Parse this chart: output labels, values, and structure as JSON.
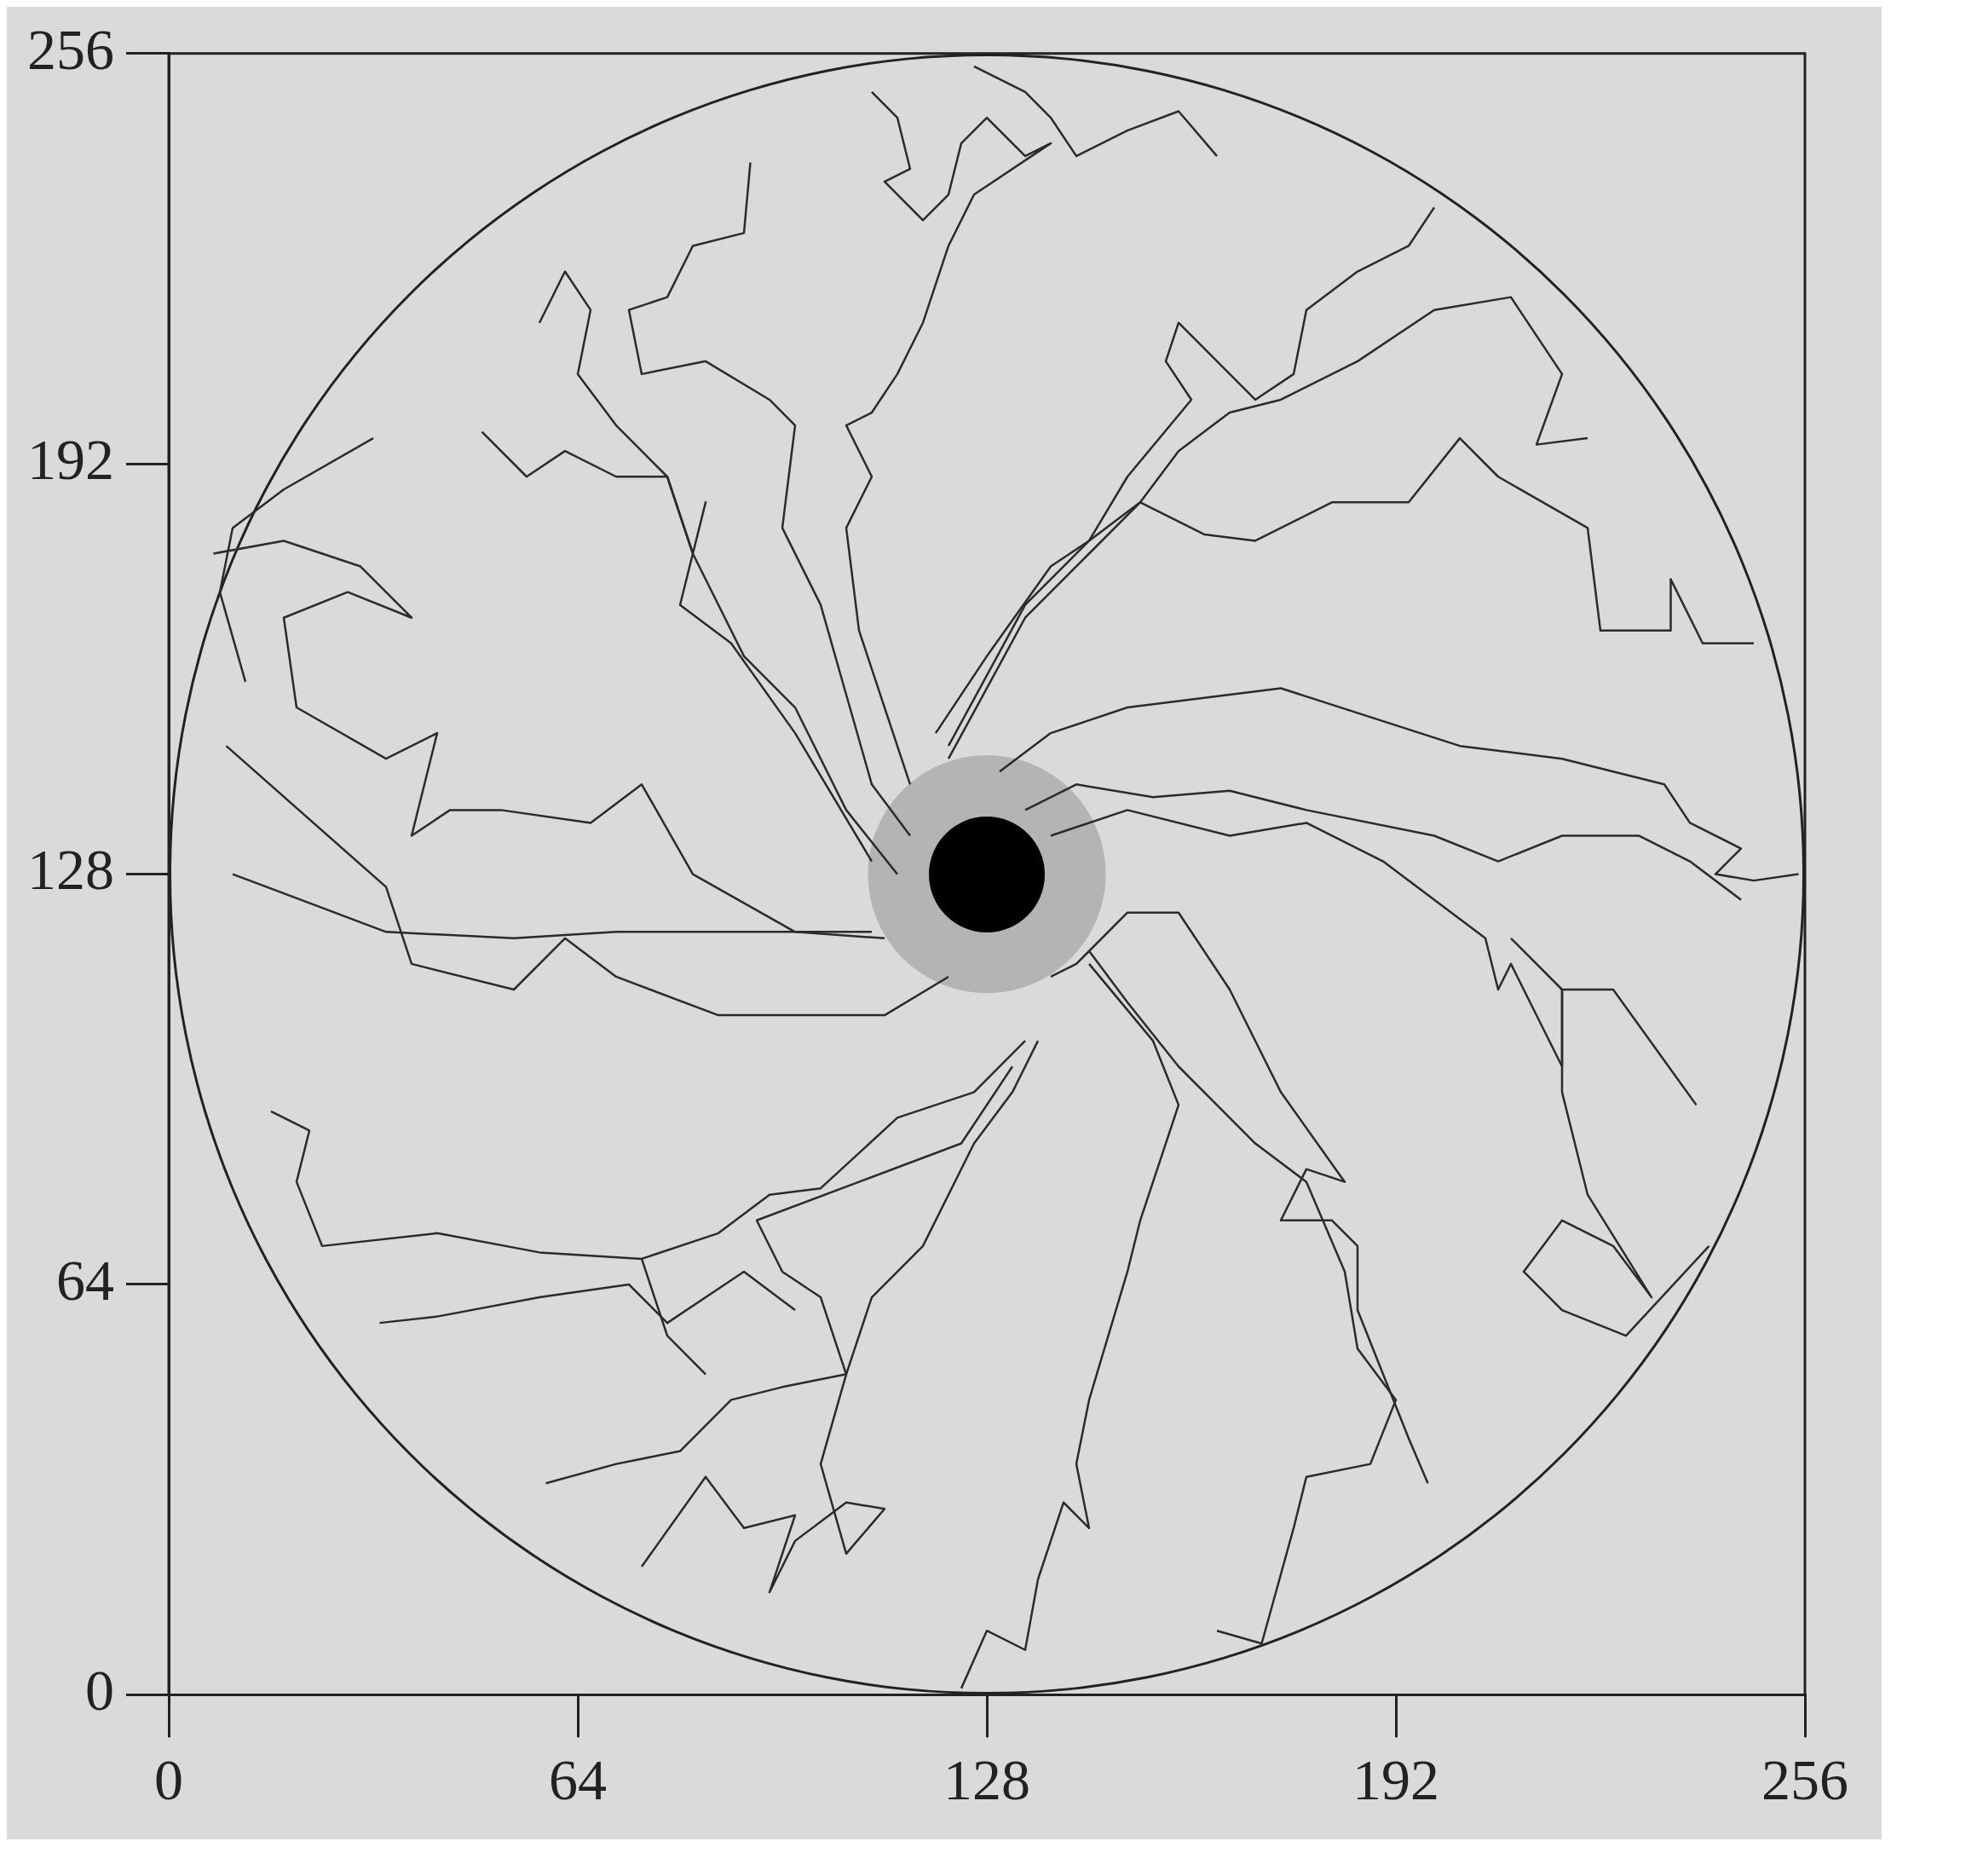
{
  "chart_data": {
    "type": "line",
    "xlim": [
      0,
      256
    ],
    "ylim": [
      0,
      256
    ],
    "xticks": [
      0,
      64,
      128,
      192,
      256
    ],
    "yticks": [
      0,
      64,
      128,
      192,
      256
    ],
    "grid": false,
    "legend": false,
    "marker": "none",
    "line_style": "solid",
    "series": [
      {
        "color": "#2b2b2b",
        "x": [
          10,
          18,
          34,
          54,
          70,
          90,
          110
        ],
        "values": [
          128,
          125,
          119,
          118,
          119,
          119,
          119
        ]
      },
      {
        "color": "#2b2b2b",
        "x": [
          9,
          34,
          38,
          54,
          62,
          70,
          86,
          112,
          122
        ],
        "values": [
          148,
          126,
          114,
          110,
          118,
          112,
          106,
          106,
          112
        ]
      },
      {
        "color": "#2b2b2b",
        "x": [
          7,
          18,
          30,
          38,
          28,
          18,
          20,
          34,
          42,
          38,
          44,
          52,
          66,
          74,
          82,
          98,
          112
        ],
        "values": [
          178,
          180,
          176,
          168,
          172,
          168,
          154,
          146,
          150,
          134,
          138,
          138,
          136,
          142,
          128,
          119,
          118
        ]
      },
      {
        "color": "#2b2b2b",
        "x": [
          32,
          18,
          10,
          8,
          12
        ],
        "values": [
          196,
          188,
          182,
          172,
          158
        ]
      },
      {
        "color": "#2b2b2b",
        "x": [
          58,
          62,
          66,
          64,
          70,
          78,
          82,
          90,
          98,
          106,
          114
        ],
        "values": [
          214,
          222,
          216,
          206,
          198,
          190,
          178,
          162,
          154,
          138,
          128
        ]
      },
      {
        "color": "#2b2b2b",
        "x": [
          49,
          56,
          62,
          70,
          78,
          82,
          84,
          80,
          88,
          98,
          110
        ],
        "values": [
          197,
          190,
          194,
          190,
          190,
          178,
          186,
          170,
          164,
          150,
          130
        ]
      },
      {
        "color": "#2b2b2b",
        "x": [
          91,
          90,
          82,
          78,
          72,
          74,
          84,
          94,
          98,
          96,
          102,
          106,
          110,
          116
        ],
        "values": [
          239,
          228,
          226,
          218,
          216,
          206,
          208,
          202,
          198,
          182,
          170,
          156,
          142,
          134
        ]
      },
      {
        "color": "#2b2b2b",
        "x": [
          110,
          114,
          116,
          112,
          118,
          122,
          124,
          128,
          134,
          138,
          126,
          122,
          118,
          114,
          110,
          106,
          110,
          106,
          108,
          112,
          116
        ],
        "values": [
          250,
          246,
          238,
          236,
          230,
          234,
          242,
          246,
          240,
          242,
          234,
          226,
          214,
          206,
          200,
          198,
          190,
          182,
          166,
          154,
          142
        ]
      },
      {
        "color": "#2b2b2b",
        "x": [
          126,
          134,
          138,
          142,
          150,
          158,
          164
        ],
        "values": [
          254,
          250,
          246,
          240,
          244,
          247,
          240
        ]
      },
      {
        "color": "#2b2b2b",
        "x": [
          198,
          194,
          186,
          178,
          176,
          170,
          158,
          156,
          160,
          150,
          144,
          138,
          128,
          120
        ],
        "values": [
          232,
          226,
          222,
          216,
          206,
          202,
          214,
          208,
          202,
          190,
          180,
          176,
          162,
          150
        ]
      },
      {
        "color": "#2b2b2b",
        "x": [
          222,
          214,
          218,
          210,
          198,
          186,
          174,
          166,
          158,
          152,
          144,
          134,
          122
        ],
        "values": [
          196,
          195,
          206,
          218,
          216,
          208,
          202,
          200,
          194,
          186,
          180,
          170,
          148
        ]
      },
      {
        "color": "#2b2b2b",
        "x": [
          248,
          240,
          235,
          235,
          224,
          222,
          208,
          202,
          194,
          182,
          170,
          162,
          152,
          144,
          134,
          122
        ],
        "values": [
          164,
          164,
          174,
          166,
          166,
          182,
          190,
          196,
          186,
          186,
          180,
          181,
          186,
          178,
          168,
          146
        ]
      },
      {
        "color": "#2b2b2b",
        "x": [
          255,
          248,
          242,
          246,
          238,
          234,
          218,
          202,
          174,
          150,
          138,
          130
        ],
        "values": [
          128,
          127,
          128,
          132,
          136,
          142,
          146,
          148,
          157,
          154,
          150,
          144
        ]
      },
      {
        "color": "#2b2b2b",
        "x": [
          246,
          238,
          230,
          218,
          208,
          198,
          178,
          166,
          154,
          142,
          134
        ],
        "values": [
          124,
          130,
          134,
          134,
          130,
          134,
          138,
          141,
          140,
          142,
          138
        ]
      },
      {
        "color": "#2b2b2b",
        "x": [
          239,
          226,
          218,
          218,
          210,
          208,
          206,
          190,
          178,
          166,
          150,
          138
        ],
        "values": [
          92,
          110,
          110,
          98,
          114,
          110,
          118,
          130,
          136,
          134,
          138,
          134
        ]
      },
      {
        "color": "#2b2b2b",
        "x": [
          241,
          228,
          218,
          212,
          218,
          226,
          232,
          222,
          218,
          218,
          210
        ],
        "values": [
          70,
          56,
          60,
          66,
          74,
          70,
          62,
          78,
          94,
          110,
          118
        ]
      },
      {
        "color": "#2b2b2b",
        "x": [
          197,
          194,
          190,
          186,
          186,
          182,
          174,
          178,
          184,
          174,
          166,
          158,
          150,
          142,
          138
        ],
        "values": [
          33,
          40,
          50,
          60,
          70,
          74,
          74,
          82,
          80,
          94,
          110,
          122,
          122,
          114,
          112
        ]
      },
      {
        "color": "#2b2b2b",
        "x": [
          164,
          171,
          176,
          178,
          188,
          192,
          186,
          184,
          178,
          170,
          158,
          150,
          144
        ],
        "values": [
          10,
          8,
          26,
          34,
          36,
          46,
          54,
          66,
          80,
          86,
          98,
          108,
          116
        ]
      },
      {
        "color": "#2b2b2b",
        "x": [
          124,
          128,
          134,
          136,
          140,
          144,
          142,
          144,
          150,
          152,
          158,
          154,
          144
        ],
        "values": [
          1,
          10,
          7,
          18,
          30,
          26,
          36,
          46,
          66,
          74,
          92,
          102,
          114
        ]
      },
      {
        "color": "#2b2b2b",
        "x": [
          74,
          84,
          90,
          98,
          94,
          98,
          106,
          112,
          106,
          102,
          106,
          110,
          118,
          126,
          132,
          136
        ],
        "values": [
          20,
          34,
          26,
          28,
          16,
          24,
          30,
          29,
          22,
          36,
          50,
          62,
          70,
          86,
          94,
          102
        ]
      },
      {
        "color": "#2b2b2b",
        "x": [
          59,
          70,
          80,
          88,
          96,
          106,
          102,
          96,
          92,
          108,
          124,
          132
        ],
        "values": [
          33,
          36,
          38,
          46,
          48,
          50,
          62,
          66,
          74,
          80,
          86,
          98
        ]
      },
      {
        "color": "#2b2b2b",
        "x": [
          16,
          22,
          20,
          24,
          42,
          58,
          74,
          78,
          84
        ],
        "values": [
          91,
          88,
          80,
          70,
          72,
          69,
          68,
          56,
          50
        ]
      },
      {
        "color": "#2b2b2b",
        "x": [
          74,
          86,
          94,
          102,
          114,
          126,
          134
        ],
        "values": [
          68,
          72,
          78,
          79,
          90,
          94,
          102
        ]
      },
      {
        "color": "#2b2b2b",
        "x": [
          33,
          42,
          58,
          72,
          78,
          90,
          98
        ],
        "values": [
          58,
          59,
          62,
          64,
          58,
          66,
          60
        ]
      }
    ]
  }
}
